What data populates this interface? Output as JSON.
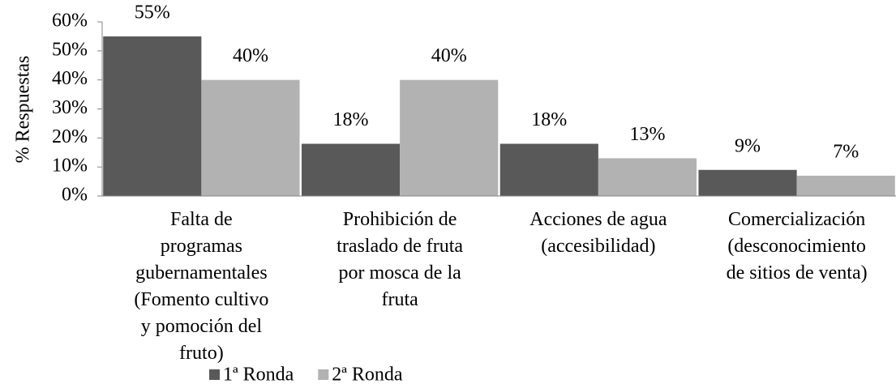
{
  "chart_data": {
    "type": "bar",
    "y_label": "% Respuestas",
    "categories": [
      "Falta de\nprogramas\ngubernamentales\n(Fomento cultivo\ny pomoción del\nfruto)",
      "Prohibición de\ntraslado de fruta\npor mosca de la\nfruta",
      "Acciones de agua\n(accesibilidad)",
      "Comercialización\n(desconocimiento\nde sitios de venta)"
    ],
    "series": [
      {
        "name": "1ª Ronda",
        "color": "#595959",
        "values": [
          55,
          18,
          18,
          9
        ],
        "value_labels": [
          "55%",
          "18%",
          "18%",
          "9%"
        ]
      },
      {
        "name": "2ª Ronda",
        "color": "#b2b2b2",
        "values": [
          40,
          40,
          13,
          7
        ],
        "value_labels": [
          "40%",
          "40%",
          "13%",
          "7%"
        ]
      }
    ],
    "ylim": [
      0,
      60
    ],
    "yticks": [
      {
        "value": 0,
        "label": "0%"
      },
      {
        "value": 10,
        "label": "10%"
      },
      {
        "value": 20,
        "label": "20%"
      },
      {
        "value": 30,
        "label": "30%"
      },
      {
        "value": 40,
        "label": "40%"
      },
      {
        "value": 50,
        "label": "50%"
      },
      {
        "value": 60,
        "label": "60%"
      }
    ],
    "grid": false,
    "legend": "bottom"
  }
}
